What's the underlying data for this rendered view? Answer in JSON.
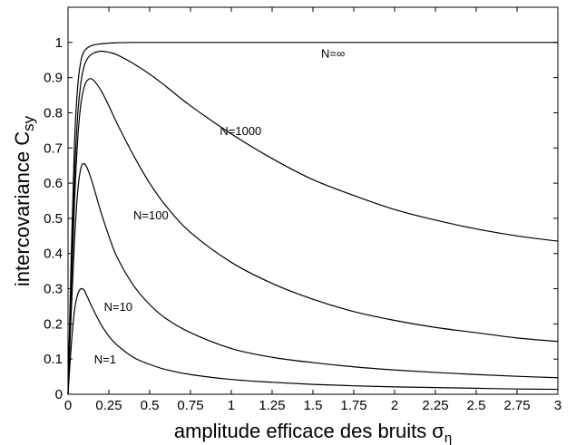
{
  "chart_data": {
    "type": "line",
    "title": "",
    "xlabel": "amplitude efficace des bruits",
    "xlabel_symbol": "σ",
    "xlabel_subscript": "η",
    "ylabel": "intercovariance C",
    "ylabel_subscript": "sy",
    "xlim": [
      0,
      3
    ],
    "ylim": [
      0,
      1.1
    ],
    "xticks": [
      0,
      0.25,
      0.5,
      0.75,
      1,
      1.25,
      1.5,
      1.75,
      2,
      2.25,
      2.5,
      2.75,
      3
    ],
    "xtick_labels": [
      "0",
      "0.25",
      "0.5",
      "0.75",
      "1",
      "1.25",
      "1.5",
      "1.75",
      "2",
      "2.25",
      "2.5",
      "2.75",
      "3"
    ],
    "yticks": [
      0,
      0.1,
      0.2,
      0.3,
      0.4,
      0.5,
      0.6,
      0.7,
      0.8,
      0.9,
      1
    ],
    "ytick_labels": [
      "0",
      "0.1",
      "0.2",
      "0.3",
      "0.4",
      "0.5",
      "0.6",
      "0.7",
      "0.8",
      "0.9",
      "1"
    ],
    "grid": false,
    "legend": "none",
    "series": [
      {
        "name": "N=∞",
        "label_at": [
          1.55,
          0.97
        ],
        "x": [
          0,
          0.02,
          0.04,
          0.06,
          0.08,
          0.1,
          0.12,
          0.15,
          0.2,
          0.25,
          0.3,
          0.4,
          0.5,
          0.75,
          1,
          1.5,
          2,
          2.5,
          3
        ],
        "y": [
          0,
          0.4,
          0.72,
          0.88,
          0.95,
          0.975,
          0.985,
          0.992,
          0.996,
          0.998,
          0.999,
          1,
          1,
          1,
          1,
          1,
          1,
          1,
          1
        ]
      },
      {
        "name": "N=1000",
        "label_at": [
          0.93,
          0.75
        ],
        "x": [
          0,
          0.02,
          0.04,
          0.06,
          0.08,
          0.1,
          0.12,
          0.15,
          0.2,
          0.25,
          0.3,
          0.4,
          0.5,
          0.6,
          0.75,
          1,
          1.25,
          1.5,
          1.75,
          2,
          2.25,
          2.5,
          2.75,
          3
        ],
        "y": [
          0,
          0.35,
          0.62,
          0.8,
          0.89,
          0.935,
          0.955,
          0.968,
          0.975,
          0.972,
          0.965,
          0.94,
          0.91,
          0.875,
          0.82,
          0.74,
          0.67,
          0.61,
          0.565,
          0.525,
          0.495,
          0.47,
          0.45,
          0.435
        ]
      },
      {
        "name": "N=100",
        "label_at": [
          0.4,
          0.51
        ],
        "x": [
          0,
          0.02,
          0.04,
          0.06,
          0.08,
          0.1,
          0.12,
          0.15,
          0.2,
          0.25,
          0.3,
          0.4,
          0.5,
          0.6,
          0.75,
          1,
          1.25,
          1.5,
          1.75,
          2,
          2.25,
          2.5,
          2.75,
          3
        ],
        "y": [
          0,
          0.3,
          0.55,
          0.73,
          0.83,
          0.875,
          0.893,
          0.895,
          0.865,
          0.82,
          0.77,
          0.68,
          0.6,
          0.535,
          0.46,
          0.375,
          0.315,
          0.27,
          0.235,
          0.21,
          0.19,
          0.175,
          0.16,
          0.15
        ]
      },
      {
        "name": "N=10",
        "label_at": [
          0.22,
          0.25
        ],
        "x": [
          0,
          0.02,
          0.04,
          0.06,
          0.08,
          0.1,
          0.12,
          0.15,
          0.2,
          0.25,
          0.3,
          0.4,
          0.5,
          0.6,
          0.75,
          1,
          1.25,
          1.5,
          1.75,
          2,
          2.25,
          2.5,
          2.75,
          3
        ],
        "y": [
          0,
          0.24,
          0.44,
          0.58,
          0.645,
          0.655,
          0.64,
          0.6,
          0.52,
          0.45,
          0.39,
          0.31,
          0.255,
          0.215,
          0.175,
          0.13,
          0.105,
          0.09,
          0.078,
          0.069,
          0.062,
          0.056,
          0.051,
          0.047
        ]
      },
      {
        "name": "N=1",
        "label_at": [
          0.16,
          0.1
        ],
        "x": [
          0,
          0.02,
          0.04,
          0.06,
          0.08,
          0.1,
          0.12,
          0.15,
          0.2,
          0.25,
          0.3,
          0.4,
          0.5,
          0.6,
          0.75,
          1,
          1.25,
          1.5,
          1.75,
          2,
          2.25,
          2.5,
          2.75,
          3
        ],
        "y": [
          0,
          0.14,
          0.24,
          0.285,
          0.3,
          0.295,
          0.275,
          0.245,
          0.2,
          0.165,
          0.14,
          0.105,
          0.085,
          0.07,
          0.056,
          0.042,
          0.034,
          0.028,
          0.024,
          0.021,
          0.019,
          0.017,
          0.015,
          0.014
        ]
      }
    ]
  }
}
